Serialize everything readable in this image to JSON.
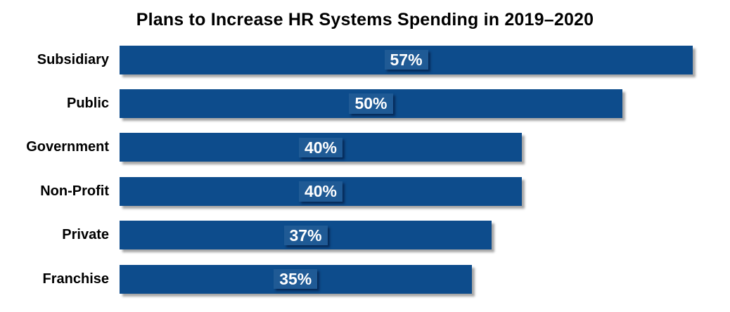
{
  "chart_data": {
    "type": "bar",
    "orientation": "horizontal",
    "title": "Plans to Increase HR Systems Spending in 2019–2020",
    "categories": [
      "Subsidiary",
      "Public",
      "Government",
      "Non-Profit",
      "Private",
      "Franchise"
    ],
    "values": [
      57,
      50,
      40,
      40,
      37,
      35
    ],
    "value_labels": [
      "57%",
      "50%",
      "40%",
      "40%",
      "37%",
      "35%"
    ],
    "xlabel": "",
    "ylabel": "",
    "xlim": [
      0,
      60
    ],
    "grid": false,
    "legend": false,
    "value_label_position": "center-of-bar"
  },
  "colors": {
    "bar": "#0d4c8c",
    "background": "#ffffff",
    "title_text": "#000000",
    "category_text": "#000000",
    "value_text": "#ffffff"
  }
}
